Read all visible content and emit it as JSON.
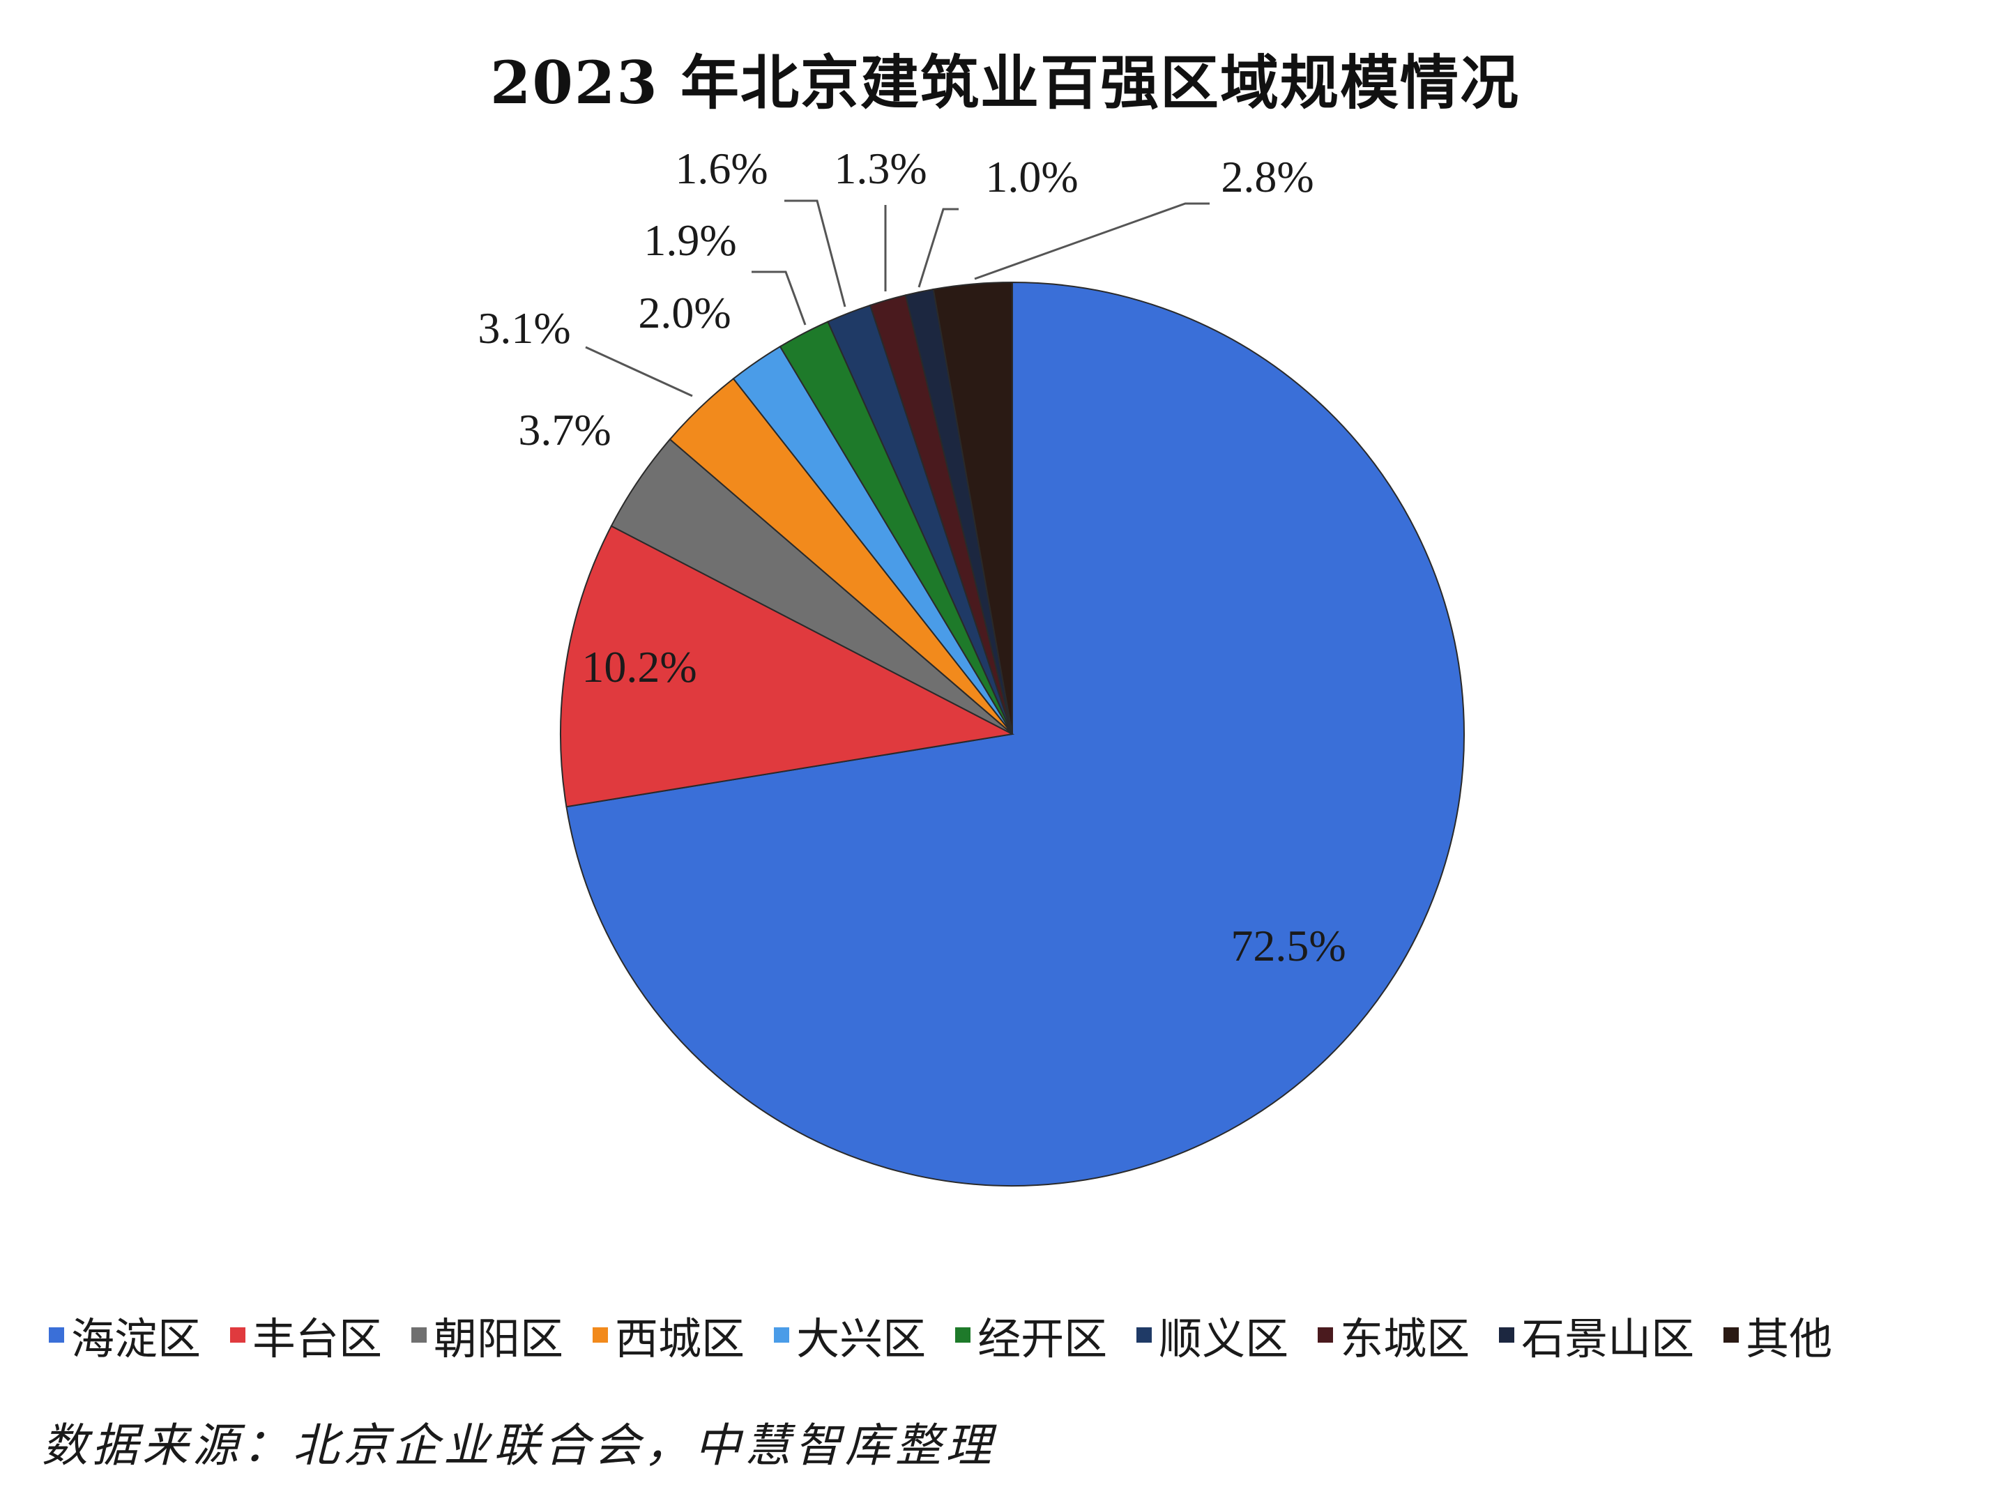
{
  "chart_data": {
    "type": "pie",
    "title": "2023 年北京建筑业百强区域规模情况",
    "categories": [
      "海淀区",
      "丰台区",
      "朝阳区",
      "西城区",
      "大兴区",
      "经开区",
      "顺义区",
      "东城区",
      "石景山区",
      "其他"
    ],
    "values": [
      72.5,
      10.2,
      3.7,
      3.1,
      2.0,
      1.9,
      1.6,
      1.3,
      1.0,
      2.8
    ],
    "value_labels": [
      "72.5%",
      "10.2%",
      "3.7%",
      "3.1%",
      "2.0%",
      "1.9%",
      "1.6%",
      "1.3%",
      "1.0%",
      "2.8%"
    ],
    "colors": [
      "#3a6fd8",
      "#e03a3e",
      "#707070",
      "#f28a1c",
      "#4a9ce8",
      "#1e7a2a",
      "#1f3a66",
      "#4a1a1e",
      "#1c2740",
      "#2a1a14"
    ],
    "start_angle": "12 o'clock",
    "direction": "clockwise",
    "legend_position": "bottom"
  },
  "source_note": "数据来源：北京企业联合会，中慧智库整理"
}
